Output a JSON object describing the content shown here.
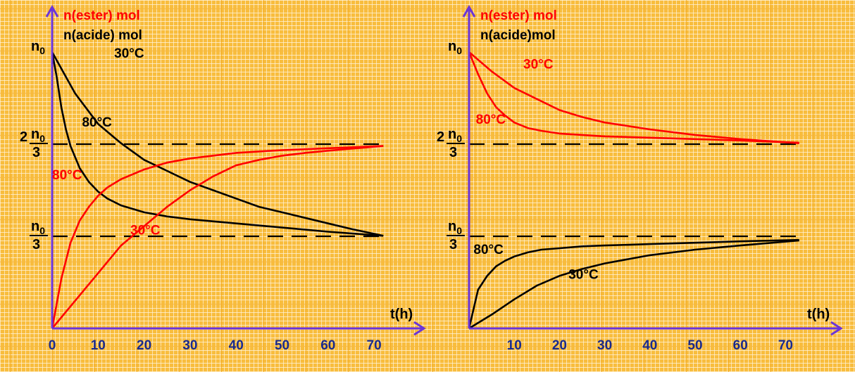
{
  "colors": {
    "paper_background": "#f8bd3d",
    "grid_minor": "#fff3dc",
    "grid_major": "#f4ad28",
    "ester_curve": "#ff0000",
    "acid_curve": "#000000",
    "axis": "#6b35d8"
  },
  "chart_data": [
    {
      "type": "line",
      "panel": "left",
      "title_red": "n(ester) mol",
      "title_black": "n(acide)  mol",
      "xlabel": "t(h)",
      "xlim": [
        0,
        75
      ],
      "ylim": [
        0,
        1.1
      ],
      "x_ticks": [
        "0",
        "10",
        "20",
        "30",
        "40",
        "50",
        "60",
        "70"
      ],
      "x_tick_values": [
        0,
        10,
        20,
        30,
        40,
        50,
        60,
        70
      ],
      "y_marks": [
        {
          "label": "n0",
          "num": "n",
          "sub": "0",
          "den": "",
          "coef": "",
          "value": 1
        },
        {
          "label": "2n0/3",
          "num": "n",
          "sub": "0",
          "den": "3",
          "coef": "2",
          "value": 0.6667
        },
        {
          "label": "n0/3",
          "num": "n",
          "sub": "0",
          "den": "3",
          "coef": "",
          "value": 0.3333
        }
      ],
      "dashed_levels": [
        0.6667,
        0.3333
      ],
      "series": [
        {
          "name": "30°C",
          "quantity": "acide",
          "color": "#000000",
          "x": [
            0,
            5,
            10,
            15,
            20,
            25,
            30,
            35,
            40,
            45,
            50,
            55,
            60,
            65,
            72
          ],
          "y": [
            1,
            0.85,
            0.74,
            0.67,
            0.61,
            0.57,
            0.53,
            0.5,
            0.47,
            0.44,
            0.42,
            0.4,
            0.38,
            0.36,
            0.335
          ]
        },
        {
          "name": "80°C",
          "quantity": "acide",
          "color": "#000000",
          "x": [
            0,
            1,
            2,
            3,
            4,
            6,
            8,
            10,
            12,
            15,
            20,
            25,
            30,
            40,
            50,
            60,
            72
          ],
          "y": [
            1,
            0.91,
            0.8,
            0.72,
            0.66,
            0.58,
            0.53,
            0.495,
            0.47,
            0.445,
            0.42,
            0.405,
            0.395,
            0.38,
            0.365,
            0.35,
            0.335
          ]
        },
        {
          "name": "80°C",
          "quantity": "ester",
          "color": "#ff0000",
          "x": [
            0,
            2,
            4,
            6,
            8,
            10,
            12,
            15,
            20,
            25,
            30,
            40,
            50,
            60,
            72
          ],
          "y": [
            0,
            0.18,
            0.31,
            0.39,
            0.44,
            0.48,
            0.51,
            0.54,
            0.575,
            0.6,
            0.615,
            0.635,
            0.645,
            0.652,
            0.66
          ]
        },
        {
          "name": "30°C",
          "quantity": "ester",
          "color": "#ff0000",
          "x": [
            0,
            5,
            10,
            15,
            20,
            25,
            30,
            35,
            40,
            45,
            50,
            55,
            60,
            65,
            72
          ],
          "y": [
            0,
            0.1,
            0.2,
            0.3,
            0.37,
            0.44,
            0.5,
            0.55,
            0.59,
            0.61,
            0.625,
            0.635,
            0.643,
            0.65,
            0.66
          ]
        }
      ],
      "annotations": [
        {
          "text": "30°C",
          "color": "#000000",
          "x": 13.5,
          "y": 0.98
        },
        {
          "text": "80°C",
          "color": "#000000",
          "x": 6.5,
          "y": 0.73
        },
        {
          "text": "80°C",
          "color": "#ff0000",
          "x": 0,
          "y": 0.54
        },
        {
          "text": "30°C",
          "color": "#ff0000",
          "x": 17,
          "y": 0.34
        }
      ]
    },
    {
      "type": "line",
      "panel": "right",
      "title_red": "n(ester) mol",
      "title_black": "n(acide)mol",
      "xlabel": "t(h)",
      "xlim": [
        0,
        78
      ],
      "ylim": [
        0,
        1.1
      ],
      "x_ticks": [
        "10",
        "20",
        "30",
        "40",
        "50",
        "60",
        "70"
      ],
      "x_tick_values": [
        10,
        20,
        30,
        40,
        50,
        60,
        70
      ],
      "y_marks": [
        {
          "label": "n0",
          "num": "n",
          "sub": "0",
          "den": "",
          "coef": "",
          "value": 1
        },
        {
          "label": "2n0/3",
          "num": "n",
          "sub": "0",
          "den": "3",
          "coef": "2",
          "value": 0.6667
        },
        {
          "label": "n0/3",
          "num": "n",
          "sub": "0",
          "den": "3",
          "coef": "",
          "value": 0.3333
        }
      ],
      "dashed_levels": [
        0.6667,
        0.3333
      ],
      "series": [
        {
          "name": "30°C",
          "quantity": "ester",
          "color": "#ff0000",
          "x": [
            0,
            5,
            10,
            15,
            20,
            25,
            30,
            40,
            50,
            60,
            73
          ],
          "y": [
            1,
            0.93,
            0.87,
            0.83,
            0.79,
            0.765,
            0.745,
            0.72,
            0.7,
            0.685,
            0.67
          ]
        },
        {
          "name": "80°C",
          "quantity": "ester",
          "color": "#ff0000",
          "x": [
            0,
            2,
            4,
            6,
            8,
            10,
            13,
            16,
            20,
            25,
            30,
            40,
            50,
            60,
            73
          ],
          "y": [
            1,
            0.92,
            0.85,
            0.8,
            0.77,
            0.745,
            0.725,
            0.715,
            0.705,
            0.7,
            0.695,
            0.69,
            0.685,
            0.68,
            0.672
          ]
        },
        {
          "name": "80°C",
          "quantity": "acide",
          "color": "#000000",
          "x": [
            0,
            2,
            4,
            6,
            8,
            10,
            13,
            16,
            20,
            25,
            30,
            40,
            50,
            60,
            73
          ],
          "y": [
            0,
            0.14,
            0.19,
            0.225,
            0.245,
            0.26,
            0.275,
            0.285,
            0.29,
            0.297,
            0.3,
            0.305,
            0.31,
            0.315,
            0.32
          ]
        },
        {
          "name": "30°C",
          "quantity": "acide",
          "color": "#000000",
          "x": [
            0,
            5,
            10,
            15,
            20,
            25,
            30,
            40,
            50,
            60,
            73
          ],
          "y": [
            0,
            0.05,
            0.105,
            0.155,
            0.19,
            0.215,
            0.235,
            0.265,
            0.285,
            0.3,
            0.318
          ]
        }
      ],
      "annotations": [
        {
          "text": "30°C",
          "color": "#ff0000",
          "x": 12,
          "y": 0.94
        },
        {
          "text": "80°C",
          "color": "#ff0000",
          "x": 1.5,
          "y": 0.74
        },
        {
          "text": "80°C",
          "color": "#000000",
          "x": 1,
          "y": 0.27
        },
        {
          "text": "30°C",
          "color": "#000000",
          "x": 22,
          "y": 0.18
        }
      ]
    }
  ]
}
